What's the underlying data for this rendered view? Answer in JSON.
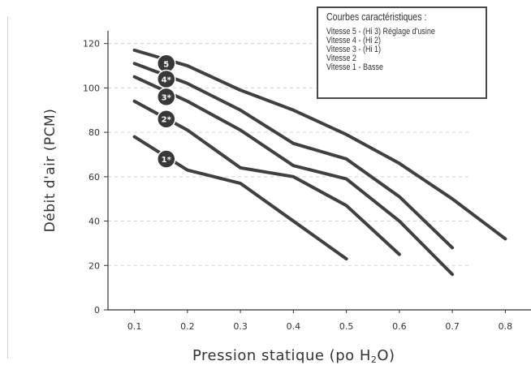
{
  "colors": {
    "line": "#404040",
    "badge": "#383838",
    "grid": "#d4d4d4",
    "axis": "#333333"
  },
  "chart_data": {
    "type": "line",
    "title": "",
    "xlabel": "Pression statique (po H",
    "xlabel_sub": "2",
    "xlabel_end": "O)",
    "ylabel": "Débit d'air (PCM)",
    "xlim": [
      0.05,
      0.85
    ],
    "ylim": [
      0,
      125
    ],
    "x_ticks": [
      "0.1",
      "0.2",
      "0.3",
      "0.4",
      "0.5",
      "0.6",
      "0.7",
      "0.8"
    ],
    "y_ticks": [
      "0",
      "20",
      "40",
      "60",
      "80",
      "100",
      "120"
    ],
    "grid": "horizontal dashed",
    "legend": {
      "title": "Courbes caractéristiques :",
      "placement": "top-right",
      "items": [
        "Vitesse 5 - (Hi 3) Réglage d'usine",
        "Vitesse 4 - (Hi 2)",
        "Vitesse 3 - (Hi 1)",
        "Vitesse 2",
        "Vitesse 1 - Basse"
      ]
    },
    "series": [
      {
        "badge": "5",
        "label_at": [
          0.16,
          111
        ],
        "x": [
          0.1,
          0.2,
          0.3,
          0.4,
          0.5,
          0.6,
          0.7,
          0.8
        ],
        "y": [
          117,
          110,
          99,
          90,
          79,
          66,
          50,
          32
        ]
      },
      {
        "badge": "4*",
        "label_at": [
          0.16,
          104
        ],
        "x": [
          0.1,
          0.2,
          0.3,
          0.4,
          0.5,
          0.6,
          0.7
        ],
        "y": [
          111,
          102,
          90,
          75,
          68,
          51,
          28
        ]
      },
      {
        "badge": "3*",
        "label_at": [
          0.16,
          96
        ],
        "x": [
          0.1,
          0.2,
          0.3,
          0.4,
          0.5,
          0.6,
          0.7
        ],
        "y": [
          105,
          94,
          81,
          65,
          59,
          40,
          16
        ]
      },
      {
        "badge": "2*",
        "label_at": [
          0.16,
          86
        ],
        "x": [
          0.1,
          0.2,
          0.3,
          0.4,
          0.5,
          0.6
        ],
        "y": [
          94,
          81,
          64,
          60,
          47,
          25
        ]
      },
      {
        "badge": "1*",
        "label_at": [
          0.16,
          68
        ],
        "x": [
          0.1,
          0.2,
          0.3,
          0.4,
          0.5
        ],
        "y": [
          78,
          63,
          57,
          40,
          23
        ]
      }
    ]
  }
}
